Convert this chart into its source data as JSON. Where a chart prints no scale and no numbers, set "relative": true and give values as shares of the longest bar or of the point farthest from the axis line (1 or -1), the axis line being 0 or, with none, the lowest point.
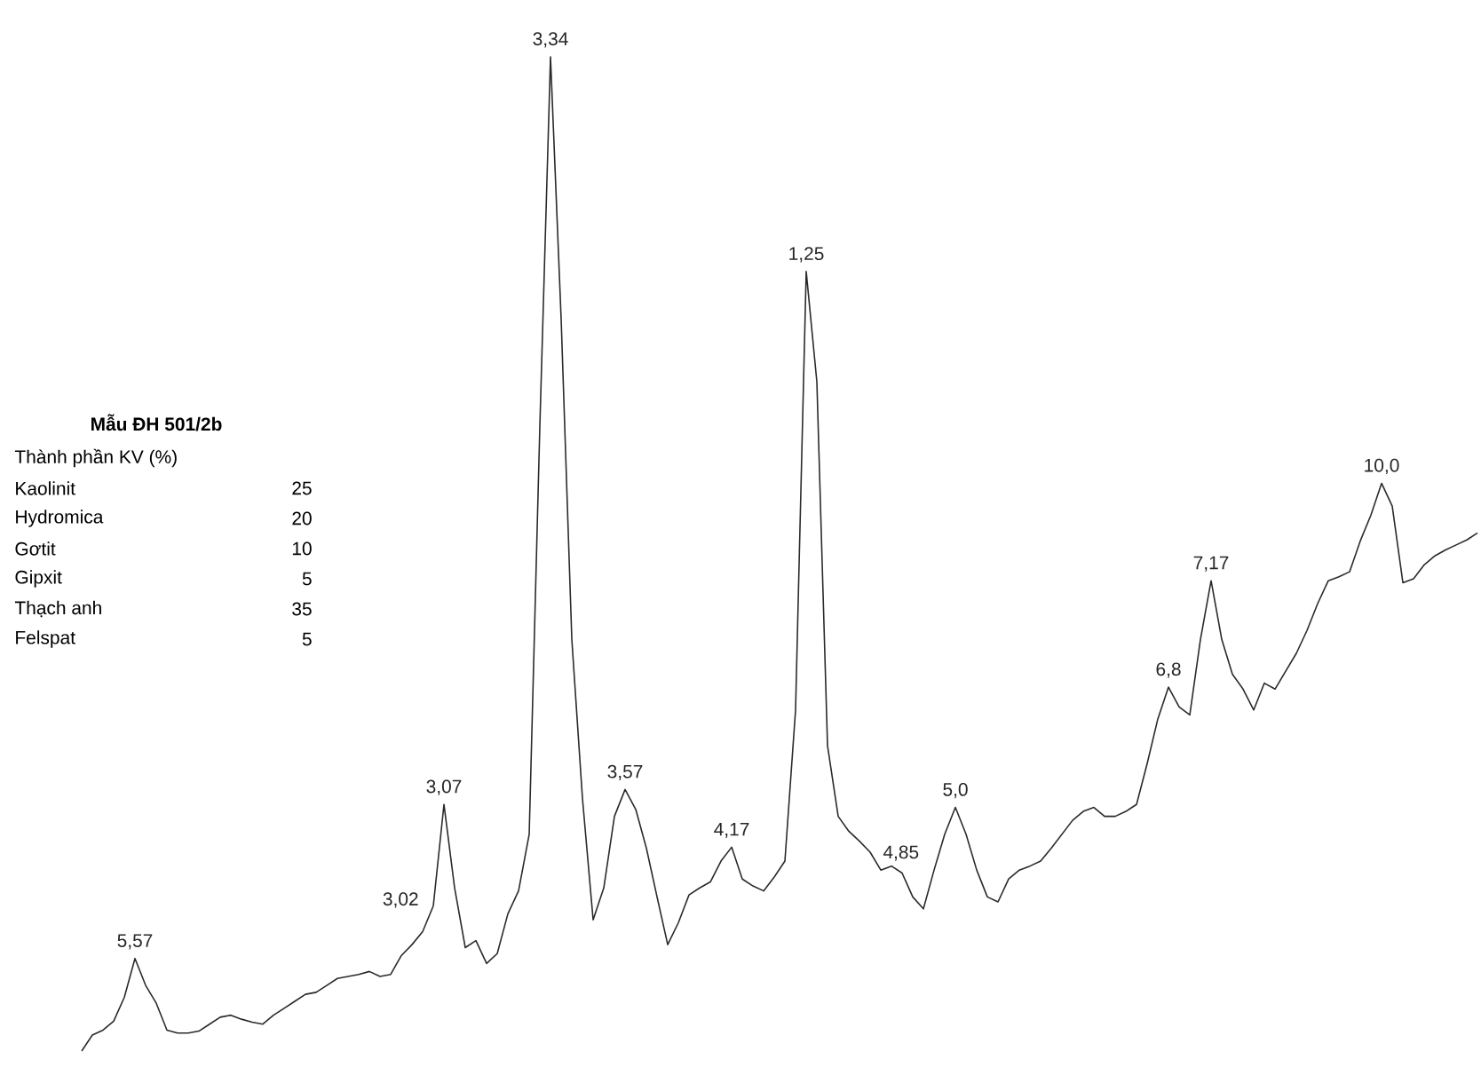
{
  "chart_data": {
    "type": "line",
    "relative": true,
    "title": "Mẫu ĐH 501/2b",
    "color": "#2a2a2a",
    "categories": [
      null,
      null,
      null,
      null,
      null,
      null,
      null,
      null,
      null,
      null,
      null,
      null,
      null,
      null,
      null,
      null,
      null,
      null,
      null,
      null,
      null,
      null,
      null,
      null,
      null,
      null,
      null,
      null,
      null,
      null,
      null,
      null,
      null,
      null,
      null,
      null,
      null,
      null,
      null,
      null,
      null,
      null,
      null,
      null,
      null,
      null,
      null,
      null,
      null,
      null,
      null,
      null,
      null,
      null,
      null,
      null,
      null,
      null,
      null,
      null,
      null,
      null,
      null,
      null,
      null,
      null,
      null,
      null,
      null,
      null,
      null,
      null,
      null,
      null,
      null,
      null,
      null,
      null,
      null,
      null,
      null,
      null,
      null,
      null,
      null,
      null,
      null,
      null,
      null,
      null,
      null,
      null,
      null,
      null,
      null,
      null,
      null,
      null,
      null,
      null,
      null,
      null,
      null,
      null,
      null,
      null,
      null,
      null,
      null,
      null,
      null,
      null,
      null,
      null,
      null,
      null,
      null,
      null,
      null,
      null,
      null,
      null,
      null,
      null,
      null,
      null,
      null,
      null,
      null,
      null,
      null,
      null
    ],
    "values": [
      0,
      0.016,
      0.021,
      0.03,
      0.054,
      0.093,
      0.066,
      0.048,
      0.021,
      0.018,
      0.018,
      0.02,
      0.027,
      0.034,
      0.036,
      0.032,
      0.029,
      0.027,
      0.036,
      0.043,
      0.05,
      0.057,
      0.059,
      0.066,
      0.073,
      0.075,
      0.077,
      0.08,
      0.075,
      0.077,
      0.096,
      0.107,
      0.12,
      0.146,
      0.248,
      0.164,
      0.104,
      0.111,
      0.088,
      0.098,
      0.138,
      0.161,
      0.218,
      0.629,
      1,
      0.736,
      0.414,
      0.254,
      0.132,
      0.164,
      0.236,
      0.263,
      0.243,
      0.204,
      0.155,
      0.107,
      0.129,
      0.157,
      0.164,
      0.17,
      0.191,
      0.205,
      0.173,
      0.166,
      0.161,
      0.175,
      0.191,
      0.343,
      0.784,
      0.673,
      0.307,
      0.236,
      0.221,
      0.211,
      0.2,
      0.182,
      0.186,
      0.179,
      0.155,
      0.143,
      0.182,
      0.218,
      0.245,
      0.218,
      0.182,
      0.155,
      0.15,
      0.173,
      0.182,
      0.186,
      0.191,
      0.204,
      0.218,
      0.232,
      0.241,
      0.245,
      0.236,
      0.236,
      0.241,
      0.248,
      0.289,
      0.334,
      0.366,
      0.346,
      0.338,
      0.414,
      0.473,
      0.414,
      0.379,
      0.364,
      0.343,
      0.37,
      0.364,
      0.382,
      0.4,
      0.423,
      0.45,
      0.473,
      0.477,
      0.482,
      0.513,
      0.539,
      0.571,
      0.548,
      0.471,
      0.475,
      0.489,
      0.498,
      0.504,
      0.509,
      0.514,
      0.521
    ],
    "annotations": [
      "Thành phần KV (%)",
      "Kaolinit",
      "25",
      "Hydromica",
      "20",
      "Gơtit",
      "10",
      "Gipxit",
      "5",
      "Thạch anh",
      "35",
      "Felspat",
      "5",
      {
        "text": "5,57",
        "y": 0.093
      },
      {
        "text": "3,07",
        "y": 0.248
      },
      {
        "text": "3,34",
        "y": 1
      },
      {
        "text": "3,57",
        "y": 0.263
      },
      {
        "text": "4,17",
        "y": 0.205
      },
      {
        "text": "1,25",
        "y": 0.784
      },
      {
        "text": "4,85",
        "y": 0.182
      },
      {
        "text": "5,0",
        "y": 0.245
      },
      {
        "text": "6,8",
        "y": 0.366
      },
      {
        "text": "7,17",
        "y": 0.473
      },
      {
        "text": "10,0",
        "y": 0.571
      },
      "3,02"
    ]
  }
}
